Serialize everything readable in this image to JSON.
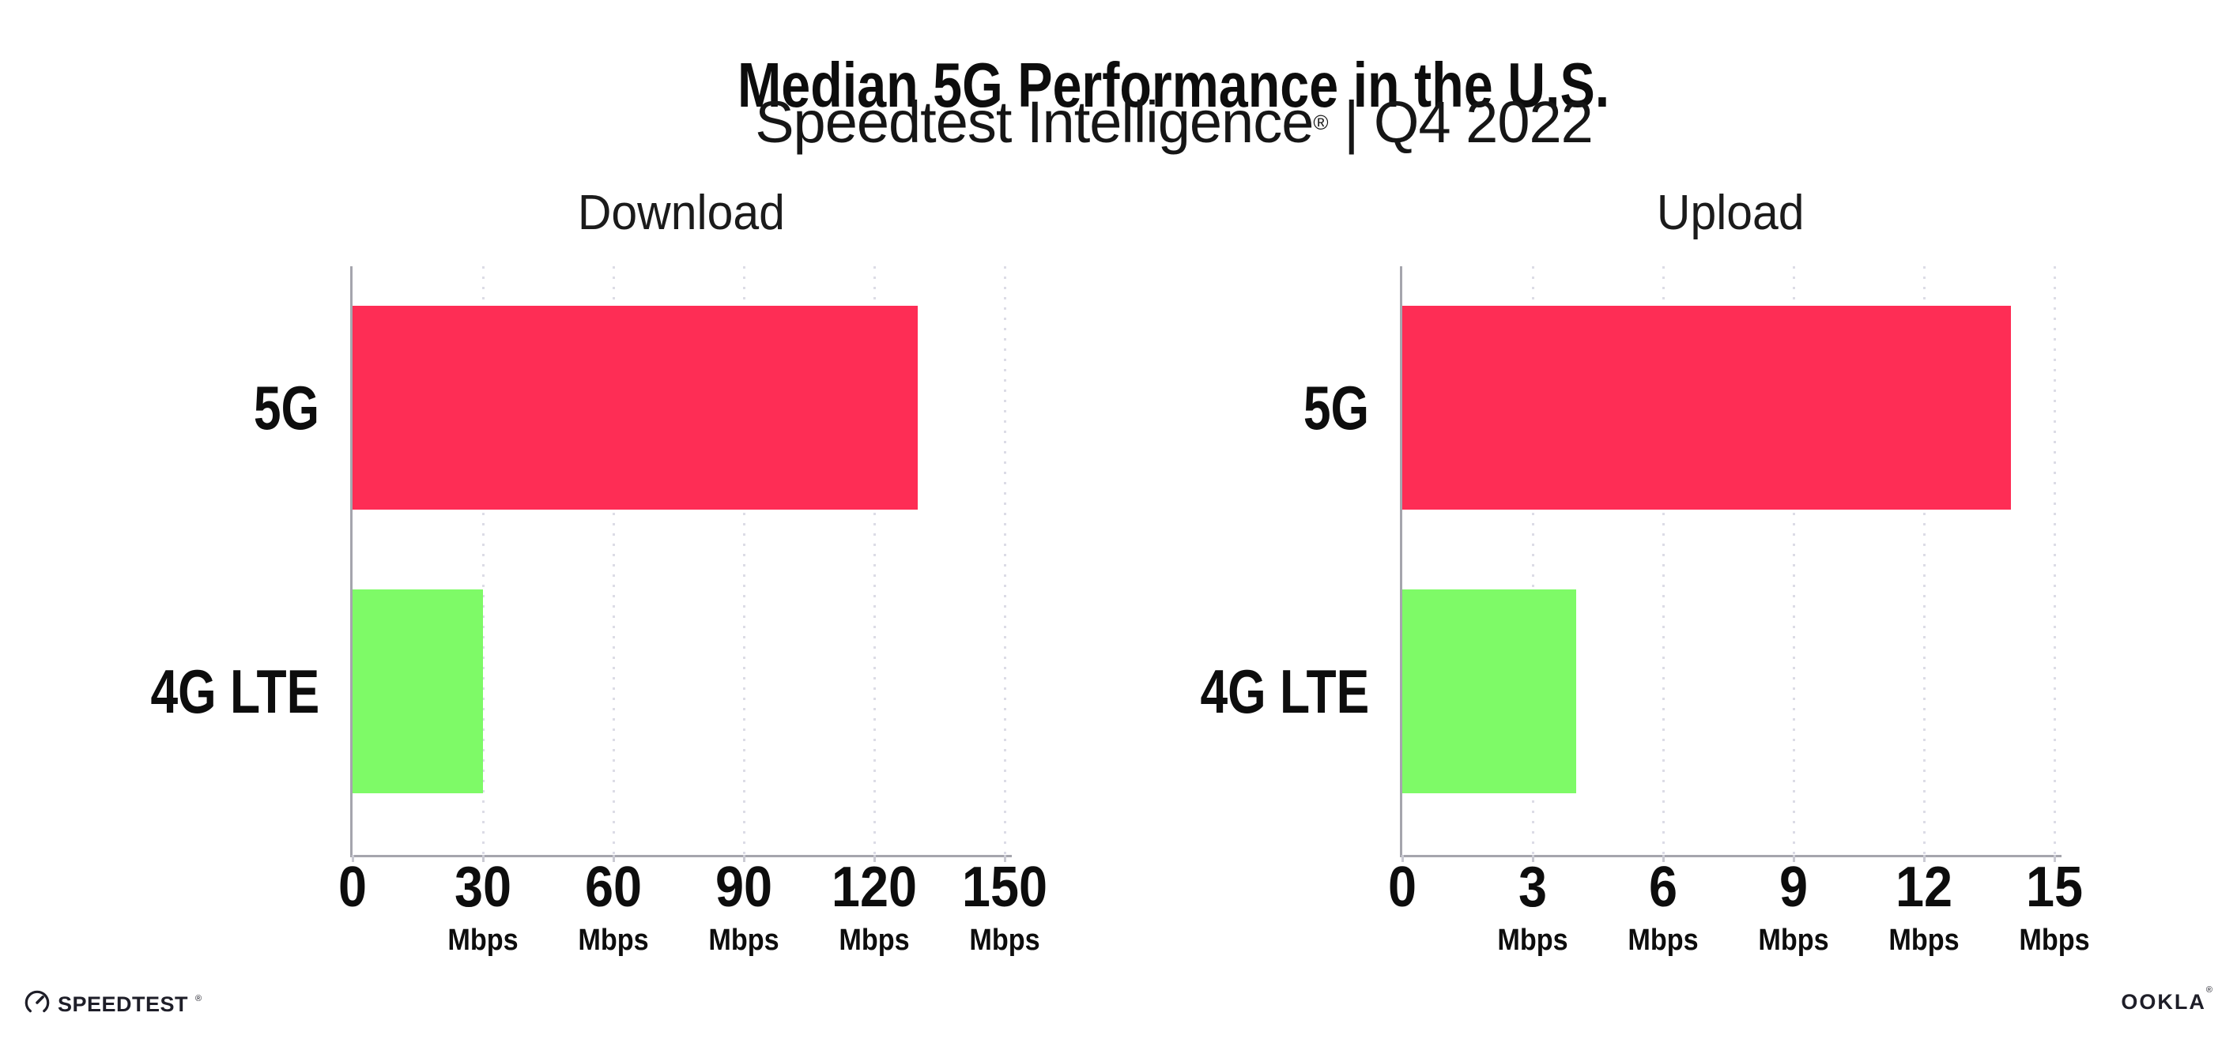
{
  "header": {
    "title": "Median 5G Performance in the U.S.",
    "subtitle_brand": "Speedtest Intelligence",
    "subtitle_reg": "®",
    "subtitle_rest": " | Q4 2022"
  },
  "chart_data": [
    {
      "type": "bar",
      "orientation": "horizontal",
      "title": "Download",
      "categories": [
        "5G",
        "4G LTE"
      ],
      "values": [
        130,
        30
      ],
      "unit": "Mbps",
      "xlabel": "",
      "ylabel": "",
      "xlim": [
        0,
        150
      ],
      "xticks": [
        0,
        30,
        60,
        90,
        120,
        150
      ],
      "bar_colors": [
        "#FE2D55",
        "#7EFA67"
      ],
      "grid": "dotted-vertical",
      "legend_position": "none"
    },
    {
      "type": "bar",
      "orientation": "horizontal",
      "title": "Upload",
      "categories": [
        "5G",
        "4G LTE"
      ],
      "values": [
        14,
        4
      ],
      "unit": "Mbps",
      "xlabel": "",
      "ylabel": "",
      "xlim": [
        0,
        15
      ],
      "xticks": [
        0,
        3,
        6,
        9,
        12,
        15
      ],
      "bar_colors": [
        "#FE2D55",
        "#7EFA67"
      ],
      "grid": "dotted-vertical",
      "legend_position": "none"
    }
  ],
  "footer": {
    "speedtest_label": "SPEEDTEST",
    "speedtest_mark": "®",
    "ookla_label": "OOKLA",
    "ookla_mark": "®"
  },
  "colors": {
    "bar_5g": "#FE2D55",
    "bar_4g_lte": "#7EFA67",
    "axis": "#A5A5AD",
    "gridline": "#DCDCE6",
    "text": "#111111"
  }
}
